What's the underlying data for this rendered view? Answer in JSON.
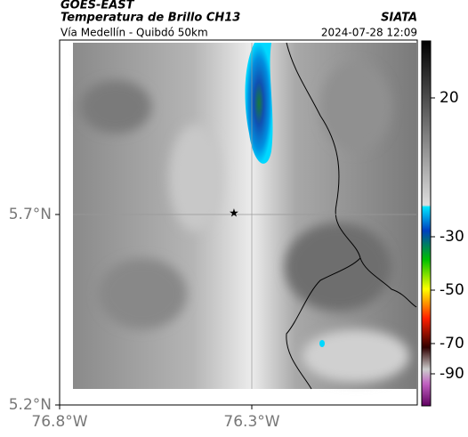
{
  "header": {
    "title": "GOES-EAST",
    "product": "Temperatura de Brillo CH13",
    "source": "SIATA",
    "subtitle": "Vía Medellín - Quibdó 50km",
    "datetime": "2024-07-28 12:09"
  },
  "map": {
    "yticks": [
      "5.7°N",
      "5.2°N"
    ],
    "xticks": [
      "76.8°W",
      "76.3°W"
    ]
  },
  "colorbar": {
    "ticks": [
      20,
      -30,
      -50,
      -70,
      -90
    ]
  }
}
